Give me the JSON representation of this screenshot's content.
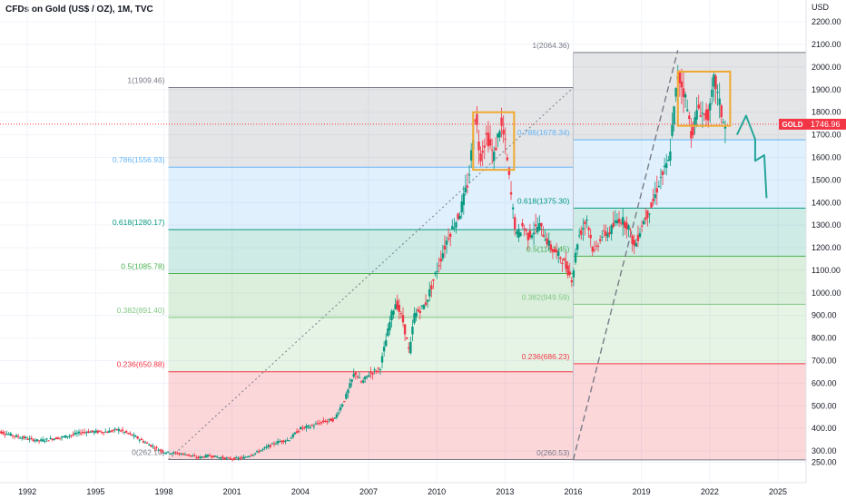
{
  "chart_data": {
    "type": "candlestick",
    "title": "CFDs on Gold (US$ / OZ), 1M, TVC",
    "y_unit": "USD",
    "ylim": [
      200,
      2250
    ],
    "y_ticks": [
      250,
      300,
      400,
      500,
      600,
      700,
      800,
      900,
      1000,
      1100,
      1200,
      1300,
      1400,
      1500,
      1600,
      1700,
      1800,
      1900,
      2000,
      2100,
      2200
    ],
    "x_ticks": [
      "1992",
      "1995",
      "1998",
      "2001",
      "2004",
      "2007",
      "2010",
      "2013",
      "2016",
      "2019",
      "2022",
      "2025"
    ],
    "x_tick_years": [
      1992,
      1995,
      1998,
      2001,
      2004,
      2007,
      2010,
      2013,
      2016,
      2019,
      2022,
      2025
    ],
    "xlim": [
      1990.6,
      2026.7
    ],
    "current_price": {
      "label": "GOLD",
      "value": "1746.96",
      "numeric": 1746.96
    },
    "fib_retracement_1": {
      "from_year": 1998.2,
      "to_year": 2016.0,
      "levels": [
        {
          "ratio": "1",
          "label": "1(1909.46)",
          "price": 1909.46,
          "color": "#787b86"
        },
        {
          "ratio": "0.786",
          "label": "0.786(1556.93)",
          "price": 1556.93,
          "color": "#64b5f6"
        },
        {
          "ratio": "0.618",
          "label": "0.618(1280.17)",
          "price": 1280.17,
          "color": "#089981"
        },
        {
          "ratio": "0.5",
          "label": "0.5(1085.78)",
          "price": 1085.78,
          "color": "#4caf50"
        },
        {
          "ratio": "0.382",
          "label": "0.382(891.40)",
          "price": 891.4,
          "color": "#81c784"
        },
        {
          "ratio": "0.236",
          "label": "0.236(650.88)",
          "price": 650.88,
          "color": "#f23645"
        },
        {
          "ratio": "0",
          "label": "0(262.10)",
          "price": 262.1,
          "color": "#787b86"
        }
      ]
    },
    "fib_retracement_2": {
      "from_year": 2016.0,
      "to_year": 2026.7,
      "levels": [
        {
          "ratio": "1",
          "label": "1(2064.36)",
          "price": 2064.36,
          "color": "#787b86"
        },
        {
          "ratio": "0.786",
          "label": "0.786(1678.34)",
          "price": 1678.34,
          "color": "#64b5f6"
        },
        {
          "ratio": "0.618",
          "label": "0.618(1375.30)",
          "price": 1375.3,
          "color": "#089981"
        },
        {
          "ratio": "0.5",
          "label": "0.5(1162.45)",
          "price": 1162.45,
          "color": "#4caf50"
        },
        {
          "ratio": "0.382",
          "label": "0.382(949.59)",
          "price": 949.59,
          "color": "#81c784"
        },
        {
          "ratio": "0.236",
          "label": "0.236(686.23)",
          "price": 686.23,
          "color": "#f23645"
        },
        {
          "ratio": "0",
          "label": "0(260.53)",
          "price": 260.53,
          "color": "#787b86"
        }
      ]
    },
    "trend_lines": [
      {
        "style": "dotted",
        "from": [
          1998.2,
          262
        ],
        "to": [
          2016.0,
          1909
        ]
      },
      {
        "style": "dashed",
        "from": [
          2016.0,
          260
        ],
        "to": [
          2020.6,
          2075
        ]
      }
    ],
    "highlight_boxes": [
      {
        "x": [
          2011.6,
          2013.4
        ],
        "y": [
          1545,
          1800
        ],
        "color": "#f0a830"
      },
      {
        "x": [
          2020.6,
          2022.9
        ],
        "y": [
          1740,
          1980
        ],
        "color": "#f0a830"
      }
    ],
    "projection_path": {
      "color": "#26a69a",
      "points": [
        [
          2023.2,
          1700
        ],
        [
          2023.6,
          1785
        ],
        [
          2024.0,
          1680
        ],
        [
          2024.0,
          1585
        ],
        [
          2024.4,
          1610
        ],
        [
          2024.5,
          1420
        ]
      ]
    },
    "price_series": {
      "years": [
        1990.6,
        1991.5,
        1992.5,
        1993.5,
        1994.5,
        1995.5,
        1996.0,
        1996.6,
        1997.5,
        1998.0,
        1998.5,
        1999.0,
        1999.5,
        2000.0,
        2000.5,
        2001.0,
        2001.5,
        2002.0,
        2002.5,
        2003.0,
        2003.5,
        2004.0,
        2004.5,
        2005.0,
        2005.5,
        2006.0,
        2006.4,
        2006.7,
        2007.0,
        2007.5,
        2008.0,
        2008.2,
        2008.5,
        2008.8,
        2009.0,
        2009.5,
        2010.0,
        2010.5,
        2011.0,
        2011.4,
        2011.7,
        2011.9,
        2012.2,
        2012.5,
        2012.8,
        2013.0,
        2013.3,
        2013.5,
        2013.8,
        2014.0,
        2014.5,
        2015.0,
        2015.5,
        2015.95,
        2016.2,
        2016.6,
        2016.9,
        2017.2,
        2017.6,
        2018.0,
        2018.4,
        2018.7,
        2019.0,
        2019.5,
        2019.8,
        2020.2,
        2020.6,
        2020.9,
        2021.2,
        2021.5,
        2021.8,
        2022.0,
        2022.2,
        2022.5,
        2022.7
      ],
      "close": [
        390,
        365,
        345,
        360,
        385,
        385,
        395,
        370,
        320,
        295,
        290,
        285,
        270,
        280,
        270,
        265,
        270,
        290,
        315,
        340,
        350,
        400,
        410,
        430,
        440,
        540,
        650,
        600,
        640,
        665,
        900,
        960,
        880,
        730,
        900,
        950,
        1100,
        1250,
        1350,
        1500,
        1800,
        1600,
        1700,
        1600,
        1750,
        1670,
        1400,
        1250,
        1300,
        1250,
        1300,
        1200,
        1150,
        1060,
        1240,
        1330,
        1170,
        1250,
        1270,
        1330,
        1300,
        1200,
        1300,
        1400,
        1500,
        1580,
        1970,
        1880,
        1700,
        1820,
        1780,
        1800,
        1950,
        1800,
        1720
      ]
    }
  }
}
